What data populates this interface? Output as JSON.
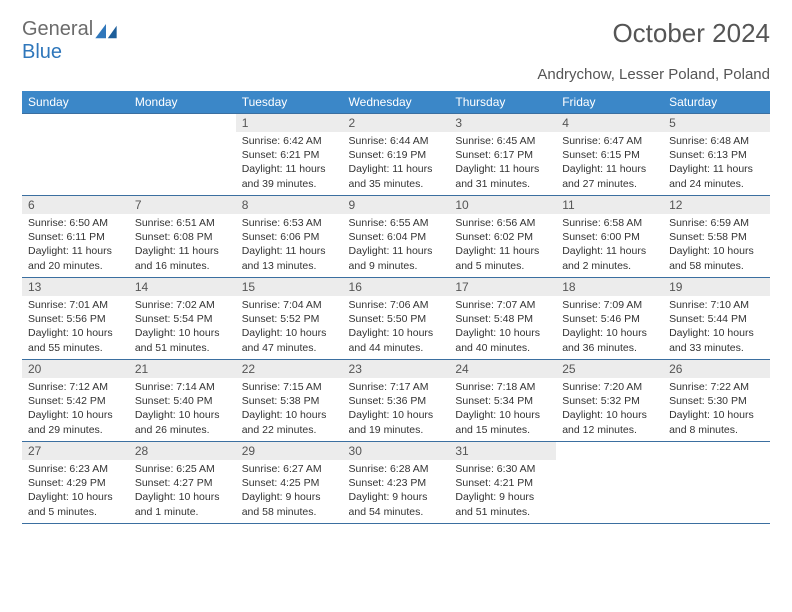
{
  "logo": {
    "textGray": "General",
    "textBlue": "Blue"
  },
  "title": "October 2024",
  "location": "Andrychow, Lesser Poland, Poland",
  "colors": {
    "headerBg": "#3b87c8",
    "headerText": "#ffffff",
    "dayBarBg": "#ececec",
    "ruleColor": "#3b6fa0",
    "bodyText": "#333333"
  },
  "dayHeaders": [
    "Sunday",
    "Monday",
    "Tuesday",
    "Wednesday",
    "Thursday",
    "Friday",
    "Saturday"
  ],
  "weeks": [
    [
      null,
      null,
      {
        "n": "1",
        "sr": "6:42 AM",
        "ss": "6:21 PM",
        "dl": "11 hours and 39 minutes."
      },
      {
        "n": "2",
        "sr": "6:44 AM",
        "ss": "6:19 PM",
        "dl": "11 hours and 35 minutes."
      },
      {
        "n": "3",
        "sr": "6:45 AM",
        "ss": "6:17 PM",
        "dl": "11 hours and 31 minutes."
      },
      {
        "n": "4",
        "sr": "6:47 AM",
        "ss": "6:15 PM",
        "dl": "11 hours and 27 minutes."
      },
      {
        "n": "5",
        "sr": "6:48 AM",
        "ss": "6:13 PM",
        "dl": "11 hours and 24 minutes."
      }
    ],
    [
      {
        "n": "6",
        "sr": "6:50 AM",
        "ss": "6:11 PM",
        "dl": "11 hours and 20 minutes."
      },
      {
        "n": "7",
        "sr": "6:51 AM",
        "ss": "6:08 PM",
        "dl": "11 hours and 16 minutes."
      },
      {
        "n": "8",
        "sr": "6:53 AM",
        "ss": "6:06 PM",
        "dl": "11 hours and 13 minutes."
      },
      {
        "n": "9",
        "sr": "6:55 AM",
        "ss": "6:04 PM",
        "dl": "11 hours and 9 minutes."
      },
      {
        "n": "10",
        "sr": "6:56 AM",
        "ss": "6:02 PM",
        "dl": "11 hours and 5 minutes."
      },
      {
        "n": "11",
        "sr": "6:58 AM",
        "ss": "6:00 PM",
        "dl": "11 hours and 2 minutes."
      },
      {
        "n": "12",
        "sr": "6:59 AM",
        "ss": "5:58 PM",
        "dl": "10 hours and 58 minutes."
      }
    ],
    [
      {
        "n": "13",
        "sr": "7:01 AM",
        "ss": "5:56 PM",
        "dl": "10 hours and 55 minutes."
      },
      {
        "n": "14",
        "sr": "7:02 AM",
        "ss": "5:54 PM",
        "dl": "10 hours and 51 minutes."
      },
      {
        "n": "15",
        "sr": "7:04 AM",
        "ss": "5:52 PM",
        "dl": "10 hours and 47 minutes."
      },
      {
        "n": "16",
        "sr": "7:06 AM",
        "ss": "5:50 PM",
        "dl": "10 hours and 44 minutes."
      },
      {
        "n": "17",
        "sr": "7:07 AM",
        "ss": "5:48 PM",
        "dl": "10 hours and 40 minutes."
      },
      {
        "n": "18",
        "sr": "7:09 AM",
        "ss": "5:46 PM",
        "dl": "10 hours and 36 minutes."
      },
      {
        "n": "19",
        "sr": "7:10 AM",
        "ss": "5:44 PM",
        "dl": "10 hours and 33 minutes."
      }
    ],
    [
      {
        "n": "20",
        "sr": "7:12 AM",
        "ss": "5:42 PM",
        "dl": "10 hours and 29 minutes."
      },
      {
        "n": "21",
        "sr": "7:14 AM",
        "ss": "5:40 PM",
        "dl": "10 hours and 26 minutes."
      },
      {
        "n": "22",
        "sr": "7:15 AM",
        "ss": "5:38 PM",
        "dl": "10 hours and 22 minutes."
      },
      {
        "n": "23",
        "sr": "7:17 AM",
        "ss": "5:36 PM",
        "dl": "10 hours and 19 minutes."
      },
      {
        "n": "24",
        "sr": "7:18 AM",
        "ss": "5:34 PM",
        "dl": "10 hours and 15 minutes."
      },
      {
        "n": "25",
        "sr": "7:20 AM",
        "ss": "5:32 PM",
        "dl": "10 hours and 12 minutes."
      },
      {
        "n": "26",
        "sr": "7:22 AM",
        "ss": "5:30 PM",
        "dl": "10 hours and 8 minutes."
      }
    ],
    [
      {
        "n": "27",
        "sr": "6:23 AM",
        "ss": "4:29 PM",
        "dl": "10 hours and 5 minutes."
      },
      {
        "n": "28",
        "sr": "6:25 AM",
        "ss": "4:27 PM",
        "dl": "10 hours and 1 minute."
      },
      {
        "n": "29",
        "sr": "6:27 AM",
        "ss": "4:25 PM",
        "dl": "9 hours and 58 minutes."
      },
      {
        "n": "30",
        "sr": "6:28 AM",
        "ss": "4:23 PM",
        "dl": "9 hours and 54 minutes."
      },
      {
        "n": "31",
        "sr": "6:30 AM",
        "ss": "4:21 PM",
        "dl": "9 hours and 51 minutes."
      },
      null,
      null
    ]
  ],
  "labels": {
    "sunrise": "Sunrise:",
    "sunset": "Sunset:",
    "daylight": "Daylight:"
  }
}
